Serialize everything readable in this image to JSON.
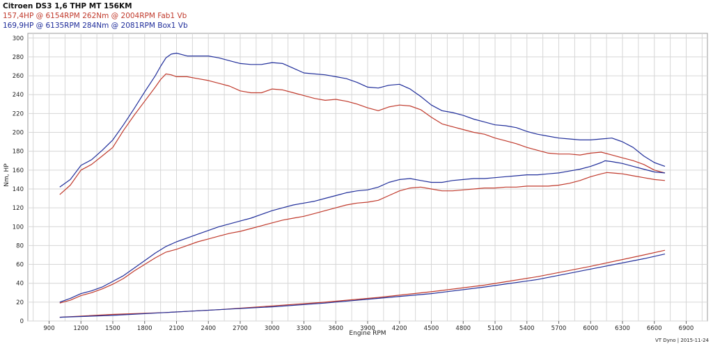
{
  "chart_data": {
    "type": "line",
    "title": "Citroen DS3 1,6 THP MT 156KM",
    "legend": [
      {
        "text": "157,4HP @  6154RPM  262Nm @ 2004RPM  Fab1 Vb",
        "color": "#c0392b"
      },
      {
        "text": "169,9HP @  6135RPM  284Nm @ 2081RPM  Box1 Vb",
        "color": "#1f2d9a"
      }
    ],
    "xlabel": "Engine RPM",
    "ylabel": "Nm, HP",
    "xlim": [
      700,
      7100
    ],
    "ylim": [
      0,
      305
    ],
    "xticks": [
      900,
      1200,
      1500,
      1800,
      2100,
      2400,
      2700,
      3000,
      3300,
      3600,
      3900,
      4200,
      4500,
      4800,
      5100,
      5400,
      5700,
      6000,
      6300,
      6600,
      6900
    ],
    "yticks": [
      0,
      20,
      40,
      60,
      80,
      100,
      120,
      140,
      160,
      180,
      200,
      220,
      240,
      260,
      280,
      300
    ],
    "grid": true,
    "series": [
      {
        "name": "Fab1 Vb",
        "kind": "torque",
        "color": "#c0392b",
        "x": [
          1000,
          1100,
          1200,
          1300,
          1400,
          1500,
          1600,
          1700,
          1800,
          1900,
          1950,
          2000,
          2050,
          2100,
          2200,
          2300,
          2400,
          2500,
          2600,
          2700,
          2800,
          2900,
          3000,
          3100,
          3200,
          3300,
          3400,
          3500,
          3600,
          3700,
          3800,
          3900,
          4000,
          4100,
          4200,
          4300,
          4400,
          4500,
          4600,
          4700,
          4800,
          4900,
          5000,
          5100,
          5200,
          5300,
          5400,
          5500,
          5600,
          5700,
          5800,
          5900,
          6000,
          6100,
          6200,
          6300,
          6400,
          6500,
          6600,
          6700
        ],
        "y": [
          134,
          144,
          160,
          166,
          175,
          184,
          202,
          218,
          233,
          248,
          256,
          262,
          261,
          259,
          259,
          257,
          255,
          252,
          249,
          244,
          242,
          242,
          246,
          245,
          242,
          239,
          236,
          234,
          235,
          233,
          230,
          226,
          223,
          227,
          229,
          228,
          224,
          216,
          209,
          206,
          203,
          200,
          198,
          194,
          191,
          188,
          184,
          181,
          178,
          177,
          177,
          176,
          178,
          179,
          176,
          173,
          170,
          166,
          160,
          157
        ]
      },
      {
        "name": "Box1 Vb",
        "kind": "torque",
        "color": "#1f2d9a",
        "x": [
          1000,
          1100,
          1200,
          1300,
          1400,
          1500,
          1600,
          1700,
          1800,
          1900,
          1950,
          2000,
          2050,
          2100,
          2200,
          2300,
          2400,
          2500,
          2600,
          2700,
          2800,
          2900,
          3000,
          3100,
          3200,
          3300,
          3400,
          3500,
          3600,
          3700,
          3800,
          3900,
          4000,
          4100,
          4200,
          4300,
          4400,
          4500,
          4600,
          4700,
          4800,
          4900,
          5000,
          5100,
          5200,
          5300,
          5400,
          5500,
          5600,
          5700,
          5800,
          5900,
          6000,
          6100,
          6200,
          6300,
          6400,
          6500,
          6600,
          6700
        ],
        "y": [
          142,
          150,
          165,
          171,
          181,
          192,
          208,
          225,
          243,
          260,
          270,
          279,
          283,
          284,
          281,
          281,
          281,
          279,
          276,
          273,
          272,
          272,
          274,
          273,
          268,
          263,
          262,
          261,
          259,
          257,
          253,
          248,
          247,
          250,
          251,
          246,
          238,
          229,
          223,
          221,
          218,
          214,
          211,
          208,
          207,
          205,
          201,
          198,
          196,
          194,
          193,
          192,
          192,
          193,
          194,
          190,
          184,
          175,
          168,
          164
        ]
      },
      {
        "name": "Fab1 Vb",
        "kind": "power",
        "color": "#c0392b",
        "x": [
          1000,
          1100,
          1200,
          1300,
          1400,
          1500,
          1600,
          1700,
          1800,
          1900,
          2000,
          2100,
          2200,
          2300,
          2400,
          2500,
          2600,
          2700,
          2800,
          2900,
          3000,
          3100,
          3200,
          3300,
          3400,
          3500,
          3600,
          3700,
          3800,
          3900,
          4000,
          4100,
          4200,
          4300,
          4400,
          4500,
          4600,
          4700,
          4800,
          4900,
          5000,
          5100,
          5200,
          5300,
          5400,
          5500,
          5600,
          5700,
          5800,
          5900,
          6000,
          6100,
          6154,
          6200,
          6300,
          6400,
          6500,
          6600,
          6700
        ],
        "y": [
          19,
          22,
          27,
          30,
          34,
          39,
          45,
          53,
          60,
          67,
          73,
          76,
          80,
          84,
          87,
          90,
          93,
          95,
          98,
          101,
          104,
          107,
          109,
          111,
          114,
          117,
          120,
          123,
          125,
          126,
          128,
          133,
          138,
          141,
          142,
          140,
          138,
          138,
          139,
          140,
          141,
          141,
          142,
          142,
          143,
          143,
          143,
          144,
          146,
          149,
          153,
          156,
          157.4,
          157,
          156,
          154,
          152,
          150,
          149
        ]
      },
      {
        "name": "Box1 Vb",
        "kind": "power",
        "color": "#1f2d9a",
        "x": [
          1000,
          1100,
          1200,
          1300,
          1400,
          1500,
          1600,
          1700,
          1800,
          1900,
          2000,
          2100,
          2200,
          2300,
          2400,
          2500,
          2600,
          2700,
          2800,
          2900,
          3000,
          3100,
          3200,
          3300,
          3400,
          3500,
          3600,
          3700,
          3800,
          3900,
          4000,
          4100,
          4200,
          4300,
          4400,
          4500,
          4600,
          4700,
          4800,
          4900,
          5000,
          5100,
          5200,
          5300,
          5400,
          5500,
          5600,
          5700,
          5800,
          5900,
          6000,
          6100,
          6135,
          6200,
          6300,
          6400,
          6500,
          6600,
          6700
        ],
        "y": [
          20,
          24,
          29,
          32,
          36,
          42,
          48,
          56,
          64,
          72,
          79,
          84,
          88,
          92,
          96,
          100,
          103,
          106,
          109,
          113,
          117,
          120,
          123,
          125,
          127,
          130,
          133,
          136,
          138,
          139,
          142,
          147,
          150,
          151,
          149,
          147,
          147,
          149,
          150,
          151,
          151,
          152,
          153,
          154,
          155,
          155,
          156,
          157,
          159,
          161,
          164,
          168,
          169.9,
          169,
          167,
          164,
          161,
          158,
          157
        ]
      },
      {
        "name": "Fab1 Vb",
        "kind": "loss",
        "color": "#c0392b",
        "x": [
          1000,
          1500,
          2000,
          2500,
          3000,
          3500,
          4000,
          4500,
          5000,
          5500,
          6000,
          6500,
          6700
        ],
        "y": [
          4,
          7,
          9,
          12,
          16,
          20,
          25,
          31,
          38,
          47,
          58,
          70,
          75
        ]
      },
      {
        "name": "Box1 Vb",
        "kind": "loss",
        "color": "#1f2d9a",
        "x": [
          1000,
          1500,
          2000,
          2500,
          3000,
          3500,
          4000,
          4500,
          5000,
          5500,
          6000,
          6500,
          6700
        ],
        "y": [
          4,
          6,
          9,
          12,
          15,
          19,
          24,
          29,
          36,
          44,
          55,
          66,
          71
        ]
      }
    ]
  },
  "footer": "VT Dyno | 2015-11-24"
}
